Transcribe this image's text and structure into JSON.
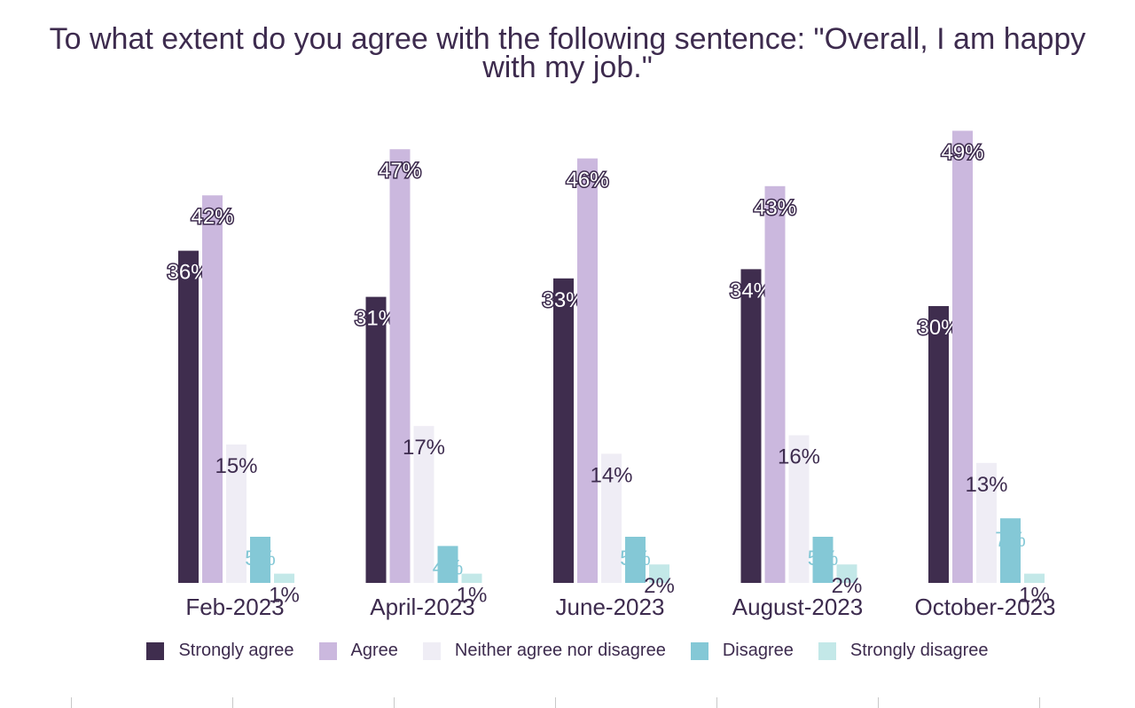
{
  "title_lines": [
    "To what extent do you agree with the following sentence: \"Overall, I am happy",
    "with my job.\""
  ],
  "chart_data": {
    "type": "bar",
    "title": "To what extent do you agree with the following sentence: \"Overall, I am happy with my job.\"",
    "categories": [
      "Feb-2023",
      "April-2023",
      "June-2023",
      "August-2023",
      "October-2023"
    ],
    "series": [
      {
        "name": "Strongly agree",
        "color": "#3f2d4e",
        "label_color": "#ffffff",
        "values": [
          36,
          31,
          33,
          34,
          30
        ]
      },
      {
        "name": "Agree",
        "color": "#cbb8de",
        "label_color": "#ffffff",
        "values": [
          42,
          47,
          46,
          43,
          49
        ]
      },
      {
        "name": "Neither agree nor disagree",
        "color": "#efedf5",
        "label_color": "#3d2b4e",
        "values": [
          15,
          17,
          14,
          16,
          13
        ]
      },
      {
        "name": "Disagree",
        "color": "#84c8d6",
        "label_color": "#84c8d6",
        "values": [
          5,
          4,
          5,
          5,
          7
        ]
      },
      {
        "name": "Strongly disagree",
        "color": "#c3e8e8",
        "label_color": "#3d2b4e",
        "values": [
          1,
          1,
          2,
          2,
          1
        ]
      }
    ],
    "value_suffix": "%",
    "ylim": [
      0,
      52
    ],
    "grid": false,
    "legend_position": "bottom"
  }
}
